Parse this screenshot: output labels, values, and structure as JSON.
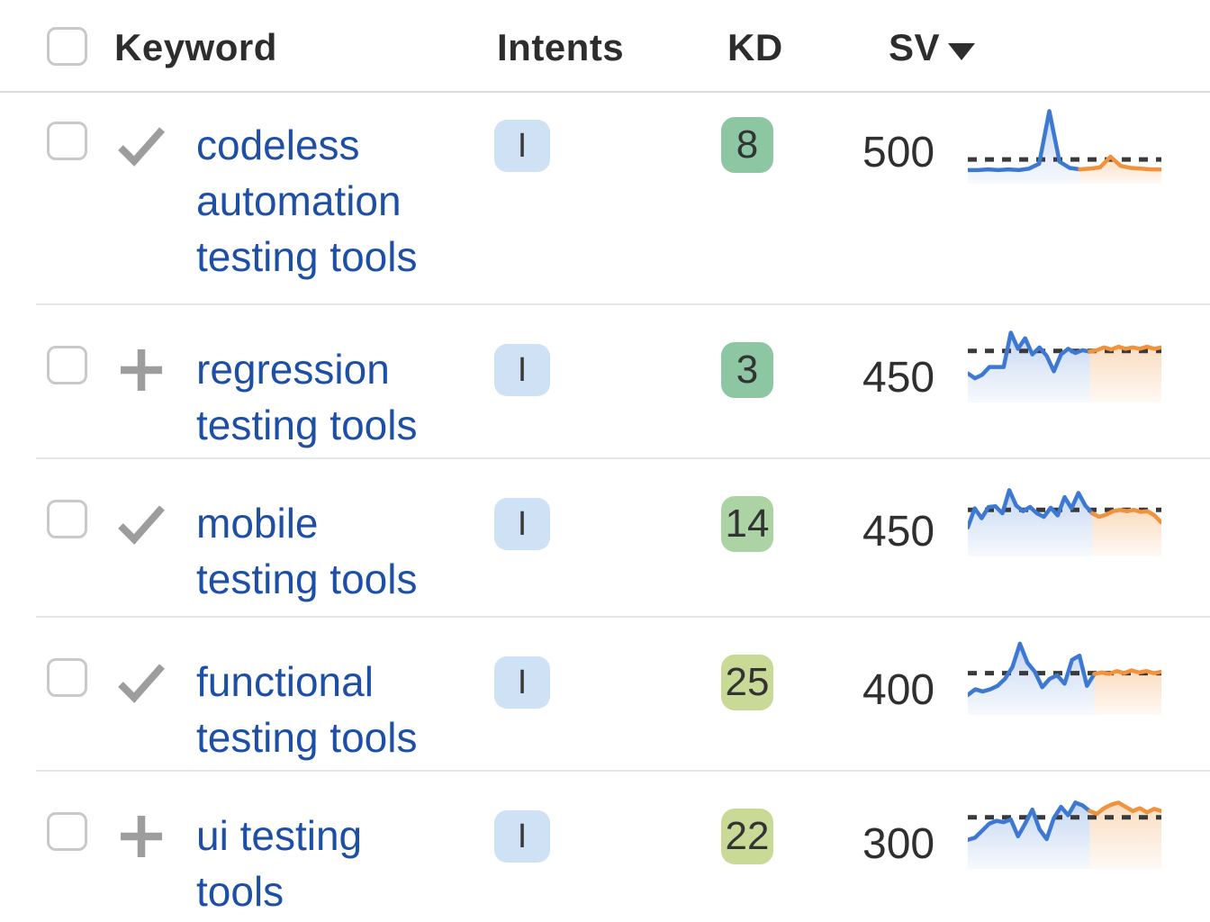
{
  "header": {
    "keyword": "Keyword",
    "intents": "Intents",
    "kd": "KD",
    "sv": "SV",
    "sort_column": "SV",
    "sort_direction": "desc"
  },
  "colors": {
    "link_blue": "#1d4fa6",
    "intent_badge_bg": "#cfe1f5",
    "kd_green": "#8cc6a3",
    "kd_light_green": "#abd3a4",
    "kd_yellow_green": "#c9da97",
    "trend_blue": "#3d79d3",
    "trend_orange": "#f1923c",
    "icon_gray": "#9d9d9d"
  },
  "rows": [
    {
      "keyword": "codeless automation testing tools",
      "status_icon": "check-icon",
      "intents": [
        "I"
      ],
      "kd": "8",
      "kd_color": "#8cc6a3",
      "sv": "500",
      "trend": {
        "dash": 0.28,
        "blue": [
          0.13,
          0.13,
          0.14,
          0.13,
          0.14,
          0.13,
          0.15,
          0.22,
          0.97,
          0.25,
          0.16,
          0.14
        ],
        "orange": [
          0.15,
          0.17,
          0.32,
          0.19,
          0.16,
          0.15,
          0.14,
          0.14
        ]
      }
    },
    {
      "keyword": "regression testing tools",
      "status_icon": "plus-icon",
      "intents": [
        "I"
      ],
      "kd": "3",
      "kd_color": "#8cc6a3",
      "sv": "450",
      "trend": {
        "dash": 0.67,
        "blue": [
          0.35,
          0.28,
          0.33,
          0.44,
          0.44,
          0.44,
          0.93,
          0.7,
          0.85,
          0.62,
          0.72,
          0.6,
          0.38,
          0.62,
          0.7,
          0.64,
          0.68,
          0.66
        ],
        "orange": [
          0.68,
          0.72,
          0.69,
          0.73,
          0.7,
          0.72,
          0.7,
          0.73,
          0.7,
          0.72
        ]
      }
    },
    {
      "keyword": "mobile testing tools",
      "status_icon": "check-icon",
      "intents": [
        "I"
      ],
      "kd": "14",
      "kd_color": "#abd3a4",
      "sv": "450",
      "trend": {
        "dash": 0.6,
        "blue": [
          0.35,
          0.62,
          0.48,
          0.64,
          0.65,
          0.55,
          0.88,
          0.66,
          0.58,
          0.64,
          0.55,
          0.5,
          0.63,
          0.52,
          0.78,
          0.62,
          0.84,
          0.66,
          0.55
        ],
        "orange": [
          0.5,
          0.53,
          0.58,
          0.6,
          0.58,
          0.6,
          0.57,
          0.58,
          0.52,
          0.42
        ]
      }
    },
    {
      "keyword": "functional testing tools",
      "status_icon": "check-icon",
      "intents": [
        "I"
      ],
      "kd": "25",
      "kd_color": "#c9da97",
      "sv": "400",
      "trend": {
        "dash": 0.53,
        "blue": [
          0.22,
          0.3,
          0.27,
          0.3,
          0.35,
          0.45,
          0.62,
          0.95,
          0.68,
          0.55,
          0.33,
          0.45,
          0.5,
          0.38,
          0.72,
          0.78,
          0.35,
          0.52
        ],
        "orange": [
          0.54,
          0.52,
          0.56,
          0.53,
          0.57,
          0.54,
          0.56,
          0.53,
          0.55
        ]
      }
    },
    {
      "keyword": "ui testing tools",
      "status_icon": "plus-icon",
      "intents": [
        "I"
      ],
      "kd": "22",
      "kd_color": "#c9da97",
      "sv": "300",
      "trend": {
        "dash": 0.67,
        "blue": [
          0.35,
          0.38,
          0.48,
          0.58,
          0.62,
          0.6,
          0.64,
          0.4,
          0.58,
          0.78,
          0.5,
          0.36,
          0.66,
          0.82,
          0.7,
          0.88,
          0.84,
          0.76
        ],
        "orange": [
          0.72,
          0.8,
          0.85,
          0.88,
          0.82,
          0.76,
          0.8,
          0.74,
          0.79,
          0.76
        ]
      }
    }
  ]
}
